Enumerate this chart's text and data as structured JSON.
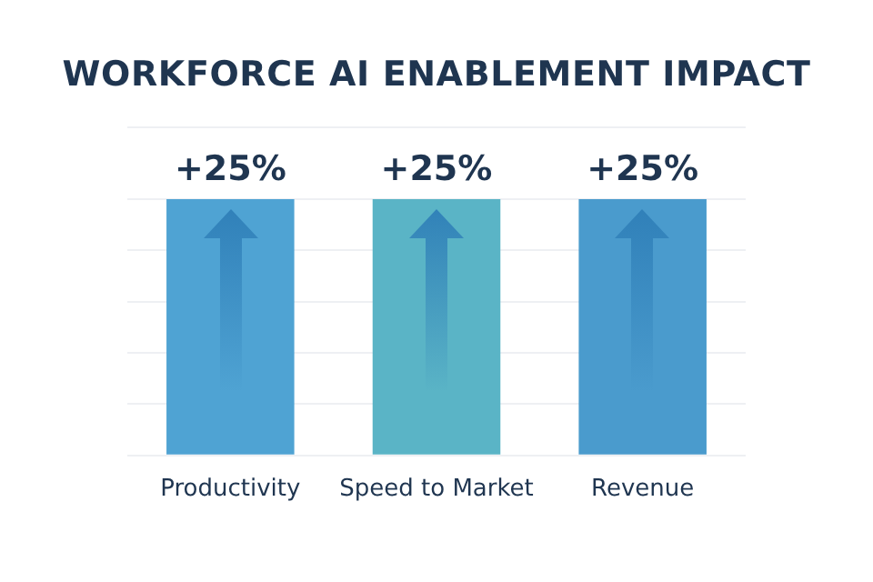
{
  "chart_data": {
    "type": "bar",
    "title": "WORKFORCE AI ENABLEMENT IMPACT",
    "ylim": [
      0,
      32
    ],
    "tick_labels": "x",
    "categories": [
      "Productivity",
      "Speed to Market",
      "Revenue"
    ],
    "values": [
      25,
      25,
      25
    ],
    "colors": [
      "#4fa3d3",
      "#5ab4c6",
      "#4a9bcd"
    ],
    "value_labels": [
      "+25%",
      "+25%",
      "+25%"
    ],
    "grid": "y",
    "legend": false
  }
}
